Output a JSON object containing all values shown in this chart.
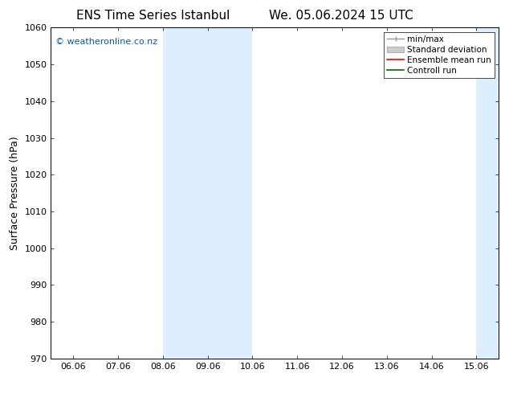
{
  "title_left": "ENS Time Series Istanbul",
  "title_right": "We. 05.06.2024 15 UTC",
  "ylabel": "Surface Pressure (hPa)",
  "ylim": [
    970,
    1060
  ],
  "yticks": [
    970,
    980,
    990,
    1000,
    1010,
    1020,
    1030,
    1040,
    1050,
    1060
  ],
  "xtick_labels": [
    "06.06",
    "07.06",
    "08.06",
    "09.06",
    "10.06",
    "11.06",
    "12.06",
    "13.06",
    "14.06",
    "15.06"
  ],
  "xtick_positions": [
    0,
    1,
    2,
    3,
    4,
    5,
    6,
    7,
    8,
    9
  ],
  "xlim": [
    -0.5,
    9.5
  ],
  "shade_bands": [
    {
      "x_start": 2,
      "x_end": 3,
      "color": "#ddeeff"
    },
    {
      "x_start": 3,
      "x_end": 4,
      "color": "#ddeeff"
    },
    {
      "x_start": 9,
      "x_end": 9.5,
      "color": "#ddeeff"
    }
  ],
  "watermark_text": "© weatheronline.co.nz",
  "watermark_color": "#0055cc",
  "legend_entries": [
    {
      "label": "min/max",
      "color": "#999999"
    },
    {
      "label": "Standard deviation",
      "color": "#cccccc"
    },
    {
      "label": "Ensemble mean run",
      "color": "#ff0000"
    },
    {
      "label": "Controll run",
      "color": "#006600"
    }
  ],
  "bg_color": "#ffffff",
  "plot_bg_color": "#ffffff",
  "border_color": "#000000",
  "title_fontsize": 11,
  "tick_fontsize": 8,
  "ylabel_fontsize": 9,
  "watermark_fontsize": 8,
  "legend_fontsize": 7.5
}
